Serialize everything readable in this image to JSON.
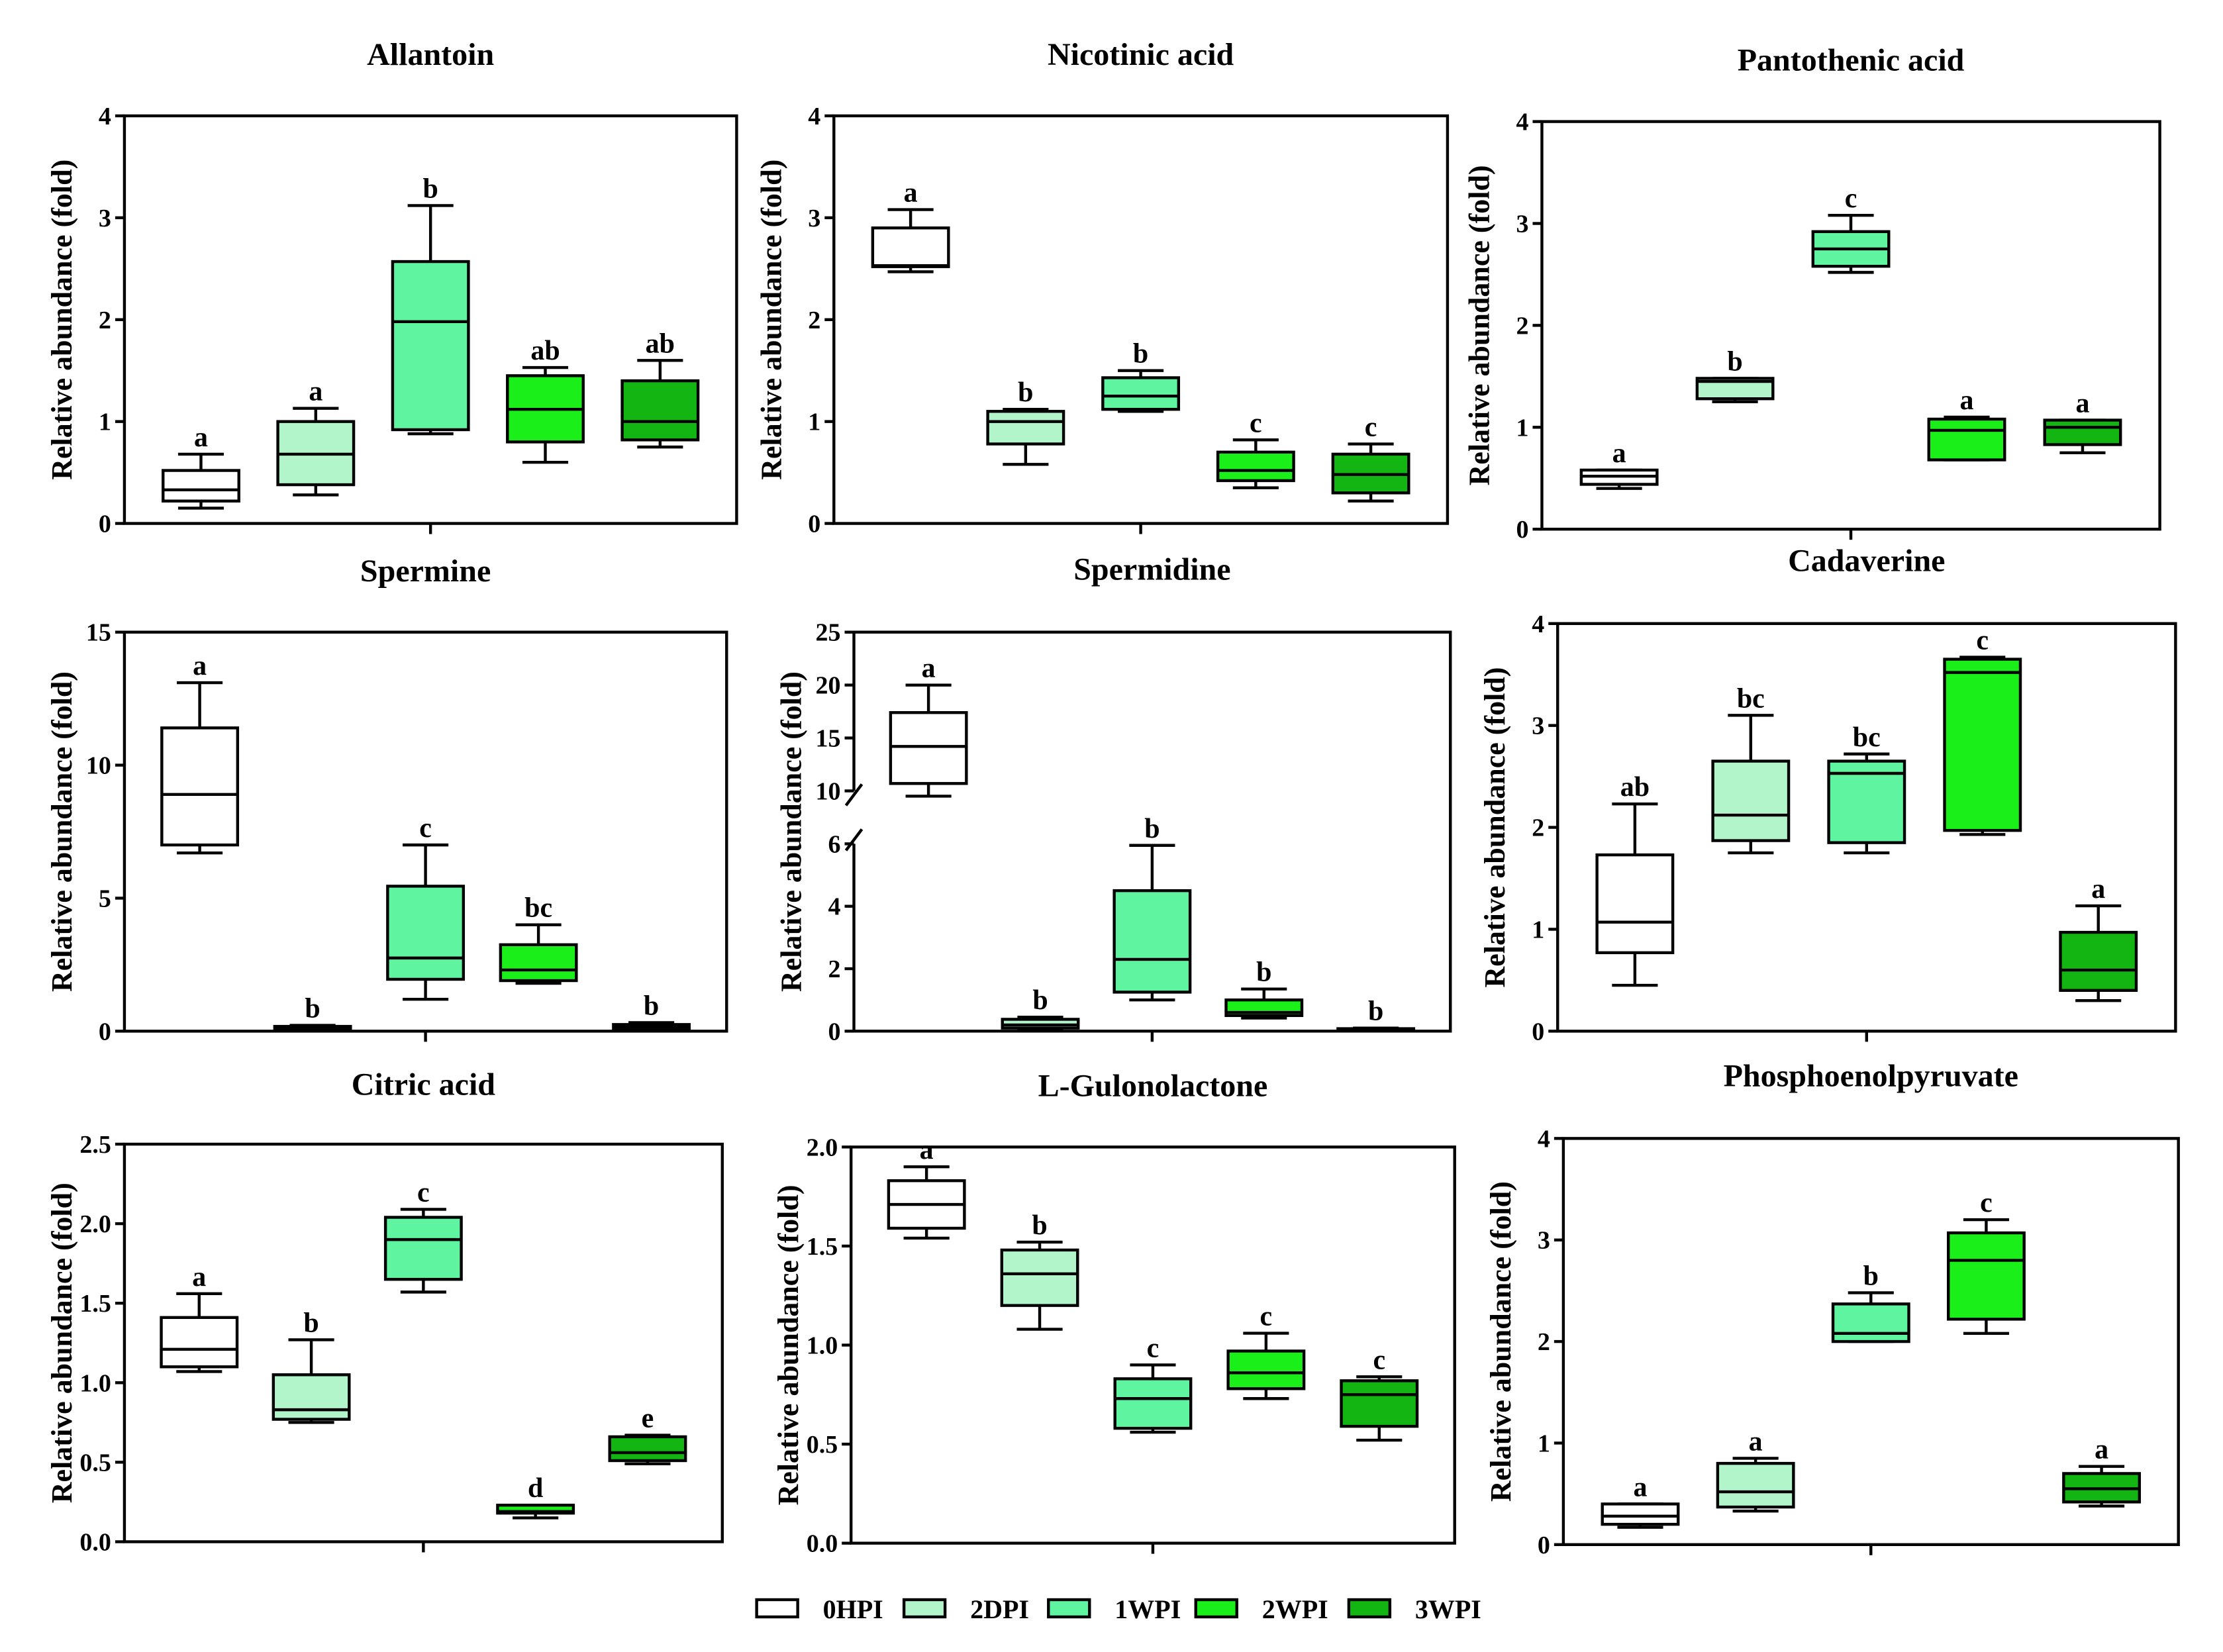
{
  "figure": {
    "groups": [
      "0HPI",
      "2DPI",
      "1WPI",
      "2WPI",
      "3WPI"
    ],
    "colors": {
      "0HPI": "#ffffff",
      "2DPI": "#b3f5cb",
      "1WPI": "#5ff5a0",
      "2WPI": "#1aef1a",
      "3WPI": "#13b513",
      "stroke": "#000000"
    }
  },
  "chart_data": [
    {
      "type": "box",
      "title": "Allantoin",
      "ylabel": "Relative abundance (fold)",
      "ylim": [
        0,
        4
      ],
      "yticks": [
        0,
        1,
        2,
        3,
        4
      ],
      "ytick_labels": [
        "0",
        "1",
        "2",
        "3",
        "4"
      ],
      "boxes": [
        {
          "group": "0HPI",
          "min": 0.15,
          "q1": 0.22,
          "median": 0.33,
          "q3": 0.52,
          "max": 0.68,
          "letter": "a"
        },
        {
          "group": "2DPI",
          "min": 0.28,
          "q1": 0.38,
          "median": 0.68,
          "q3": 1.0,
          "max": 1.13,
          "letter": "a"
        },
        {
          "group": "1WPI",
          "min": 0.88,
          "q1": 0.92,
          "median": 1.98,
          "q3": 2.57,
          "max": 3.12,
          "letter": "b"
        },
        {
          "group": "2WPI",
          "min": 0.6,
          "q1": 0.8,
          "median": 1.12,
          "q3": 1.45,
          "max": 1.53,
          "letter": "ab"
        },
        {
          "group": "3WPI",
          "min": 0.75,
          "q1": 0.82,
          "median": 1.0,
          "q3": 1.4,
          "max": 1.6,
          "letter": "ab"
        }
      ]
    },
    {
      "type": "box",
      "title": "Nicotinic acid",
      "ylabel": "Relative abundance (fold)",
      "ylim": [
        0,
        4
      ],
      "yticks": [
        0,
        1,
        2,
        3,
        4
      ],
      "ytick_labels": [
        "0",
        "1",
        "2",
        "3",
        "4"
      ],
      "boxes": [
        {
          "group": "0HPI",
          "min": 2.47,
          "q1": 2.52,
          "median": 2.53,
          "q3": 2.9,
          "max": 3.08,
          "letter": "a"
        },
        {
          "group": "2DPI",
          "min": 0.58,
          "q1": 0.78,
          "median": 1.0,
          "q3": 1.1,
          "max": 1.12,
          "letter": "b"
        },
        {
          "group": "1WPI",
          "min": 1.1,
          "q1": 1.12,
          "median": 1.25,
          "q3": 1.43,
          "max": 1.5,
          "letter": "b"
        },
        {
          "group": "2WPI",
          "min": 0.35,
          "q1": 0.42,
          "median": 0.52,
          "q3": 0.7,
          "max": 0.82,
          "letter": "c"
        },
        {
          "group": "3WPI",
          "min": 0.22,
          "q1": 0.3,
          "median": 0.48,
          "q3": 0.68,
          "max": 0.78,
          "letter": "c"
        }
      ]
    },
    {
      "type": "box",
      "title": "Pantothenic acid",
      "ylabel": "Relative abundance (fold)",
      "ylim": [
        0,
        4
      ],
      "yticks": [
        0,
        1,
        2,
        3,
        4
      ],
      "ytick_labels": [
        "0",
        "1",
        "2",
        "3",
        "4"
      ],
      "boxes": [
        {
          "group": "0HPI",
          "min": 0.4,
          "q1": 0.44,
          "median": 0.52,
          "q3": 0.58,
          "max": 0.58,
          "letter": "a"
        },
        {
          "group": "2DPI",
          "min": 1.25,
          "q1": 1.28,
          "median": 1.45,
          "q3": 1.48,
          "max": 1.48,
          "letter": "b"
        },
        {
          "group": "1WPI",
          "min": 2.52,
          "q1": 2.58,
          "median": 2.75,
          "q3": 2.92,
          "max": 3.08,
          "letter": "c"
        },
        {
          "group": "2WPI",
          "min": 0.68,
          "q1": 0.68,
          "median": 0.97,
          "q3": 1.08,
          "max": 1.1,
          "letter": "a"
        },
        {
          "group": "3WPI",
          "min": 0.75,
          "q1": 0.83,
          "median": 1.0,
          "q3": 1.07,
          "max": 1.07,
          "letter": "a"
        }
      ]
    },
    {
      "type": "box",
      "title": "Spermine",
      "ylabel": "Relative abundance (fold)",
      "ylim": [
        0,
        15
      ],
      "yticks": [
        0,
        5,
        10,
        15
      ],
      "ytick_labels": [
        "0",
        "5",
        "10",
        "15"
      ],
      "boxes": [
        {
          "group": "0HPI",
          "min": 6.7,
          "q1": 7.0,
          "median": 8.9,
          "q3": 11.4,
          "max": 13.1,
          "letter": "a"
        },
        {
          "group": "2DPI",
          "min": 0.05,
          "q1": 0.08,
          "median": 0.12,
          "q3": 0.18,
          "max": 0.22,
          "letter": "b"
        },
        {
          "group": "1WPI",
          "min": 1.2,
          "q1": 1.95,
          "median": 2.75,
          "q3": 5.45,
          "max": 7.0,
          "letter": "c"
        },
        {
          "group": "2WPI",
          "min": 1.8,
          "q1": 1.9,
          "median": 2.3,
          "q3": 3.25,
          "max": 4.0,
          "letter": "bc"
        },
        {
          "group": "3WPI",
          "min": 0.05,
          "q1": 0.08,
          "median": 0.15,
          "q3": 0.25,
          "max": 0.32,
          "letter": "b"
        }
      ]
    },
    {
      "type": "box",
      "title": "Spermidine",
      "ylabel": "Relative abundance (fold)",
      "broken_axis": true,
      "lower_segment": [
        0,
        6
      ],
      "upper_segment": [
        10,
        25
      ],
      "yticks": [
        0,
        2,
        4,
        6,
        10,
        15,
        20,
        25
      ],
      "ytick_labels": [
        "0",
        "2",
        "4",
        "6",
        "10",
        "15",
        "20",
        "25"
      ],
      "boxes": [
        {
          "group": "0HPI",
          "min": 9.5,
          "q1": 10.7,
          "median": 14.2,
          "q3": 17.4,
          "max": 20.0,
          "letter": "a"
        },
        {
          "group": "2DPI",
          "min": 0.05,
          "q1": 0.1,
          "median": 0.2,
          "q3": 0.38,
          "max": 0.45,
          "letter": "b"
        },
        {
          "group": "1WPI",
          "min": 1.0,
          "q1": 1.25,
          "median": 2.3,
          "q3": 4.5,
          "max": 5.95,
          "letter": "b"
        },
        {
          "group": "2WPI",
          "min": 0.42,
          "q1": 0.5,
          "median": 0.6,
          "q3": 1.0,
          "max": 1.35,
          "letter": "b"
        },
        {
          "group": "3WPI",
          "min": 0.02,
          "q1": 0.03,
          "median": 0.05,
          "q3": 0.08,
          "max": 0.1,
          "letter": "b"
        }
      ]
    },
    {
      "type": "box",
      "title": "Cadaverine",
      "ylabel": "Relative abundance (fold)",
      "ylim": [
        0,
        4
      ],
      "yticks": [
        0,
        1,
        2,
        3,
        4
      ],
      "ytick_labels": [
        "0",
        "1",
        "2",
        "3",
        "4"
      ],
      "boxes": [
        {
          "group": "0HPI",
          "min": 0.45,
          "q1": 0.77,
          "median": 1.07,
          "q3": 1.73,
          "max": 2.23,
          "letter": "ab"
        },
        {
          "group": "2DPI",
          "min": 1.75,
          "q1": 1.87,
          "median": 2.12,
          "q3": 2.65,
          "max": 3.1,
          "letter": "bc"
        },
        {
          "group": "1WPI",
          "min": 1.75,
          "q1": 1.85,
          "median": 2.53,
          "q3": 2.65,
          "max": 2.72,
          "letter": "bc"
        },
        {
          "group": "2WPI",
          "min": 1.93,
          "q1": 1.97,
          "median": 3.52,
          "q3": 3.65,
          "max": 3.67,
          "letter": "c"
        },
        {
          "group": "3WPI",
          "min": 0.3,
          "q1": 0.4,
          "median": 0.6,
          "q3": 0.97,
          "max": 1.23,
          "letter": "a"
        }
      ]
    },
    {
      "type": "box",
      "title": "Citric acid",
      "ylabel": "Relative abundance (fold)",
      "ylim": [
        0,
        2.5
      ],
      "yticks": [
        0,
        0.5,
        1,
        1.5,
        2,
        2.5
      ],
      "ytick_labels": [
        "0.0",
        "0.5",
        "1.0",
        "1.5",
        "2.0",
        "2.5"
      ],
      "boxes": [
        {
          "group": "0HPI",
          "min": 1.07,
          "q1": 1.1,
          "median": 1.21,
          "q3": 1.41,
          "max": 1.56,
          "letter": "a"
        },
        {
          "group": "2DPI",
          "min": 0.75,
          "q1": 0.77,
          "median": 0.83,
          "q3": 1.05,
          "max": 1.27,
          "letter": "b"
        },
        {
          "group": "1WPI",
          "min": 1.57,
          "q1": 1.65,
          "median": 1.9,
          "q3": 2.04,
          "max": 2.09,
          "letter": "c"
        },
        {
          "group": "2WPI",
          "min": 0.15,
          "q1": 0.18,
          "median": 0.19,
          "q3": 0.23,
          "max": 0.23,
          "letter": "d"
        },
        {
          "group": "3WPI",
          "min": 0.49,
          "q1": 0.51,
          "median": 0.56,
          "q3": 0.66,
          "max": 0.67,
          "letter": "e"
        }
      ]
    },
    {
      "type": "box",
      "title": "L-Gulonolactone",
      "ylabel": "Relative abundance (fold)",
      "ylim": [
        0,
        2
      ],
      "yticks": [
        0,
        0.5,
        1,
        1.5,
        2
      ],
      "ytick_labels": [
        "0.0",
        "0.5",
        "1.0",
        "1.5",
        "2.0"
      ],
      "boxes": [
        {
          "group": "0HPI",
          "min": 1.54,
          "q1": 1.59,
          "median": 1.71,
          "q3": 1.83,
          "max": 1.9,
          "letter": "a"
        },
        {
          "group": "2DPI",
          "min": 1.08,
          "q1": 1.2,
          "median": 1.36,
          "q3": 1.48,
          "max": 1.52,
          "letter": "b"
        },
        {
          "group": "1WPI",
          "min": 0.56,
          "q1": 0.58,
          "median": 0.73,
          "q3": 0.83,
          "max": 0.9,
          "letter": "c"
        },
        {
          "group": "2WPI",
          "min": 0.73,
          "q1": 0.78,
          "median": 0.86,
          "q3": 0.97,
          "max": 1.06,
          "letter": "c"
        },
        {
          "group": "3WPI",
          "min": 0.52,
          "q1": 0.59,
          "median": 0.75,
          "q3": 0.82,
          "max": 0.84,
          "letter": "c"
        }
      ]
    },
    {
      "type": "box",
      "title": "Phosphoenolpyruvate",
      "ylabel": "Relative abundance (fold)",
      "ylim": [
        0,
        4
      ],
      "yticks": [
        0,
        1,
        2,
        3,
        4
      ],
      "ytick_labels": [
        "0",
        "1",
        "2",
        "3",
        "4"
      ],
      "boxes": [
        {
          "group": "0HPI",
          "min": 0.17,
          "q1": 0.2,
          "median": 0.28,
          "q3": 0.4,
          "max": 0.4,
          "letter": "a"
        },
        {
          "group": "2DPI",
          "min": 0.33,
          "q1": 0.37,
          "median": 0.52,
          "q3": 0.8,
          "max": 0.85,
          "letter": "a"
        },
        {
          "group": "1WPI",
          "min": 2.0,
          "q1": 2.0,
          "median": 2.08,
          "q3": 2.37,
          "max": 2.48,
          "letter": "b"
        },
        {
          "group": "2WPI",
          "min": 2.08,
          "q1": 2.22,
          "median": 2.8,
          "q3": 3.07,
          "max": 3.2,
          "letter": "c"
        },
        {
          "group": "3WPI",
          "min": 0.38,
          "q1": 0.42,
          "median": 0.55,
          "q3": 0.7,
          "max": 0.77,
          "letter": "a"
        }
      ]
    }
  ],
  "legend": {
    "items": [
      "0HPI",
      "2DPI",
      "1WPI",
      "2WPI",
      "3WPI"
    ]
  }
}
